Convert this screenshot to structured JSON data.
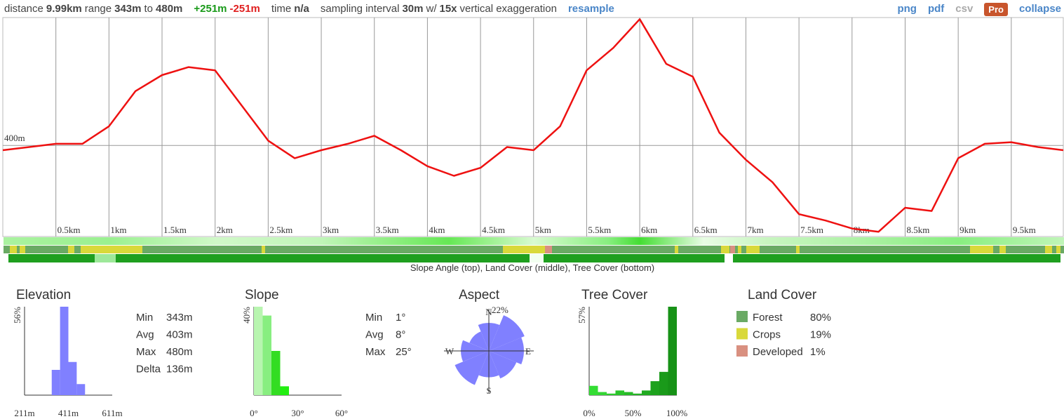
{
  "header": {
    "groups": [
      [
        {
          "text": "distance"
        },
        {
          "text": "9.99km",
          "bold": true
        },
        {
          "text": "range"
        },
        {
          "text": "343m",
          "bold": true
        },
        {
          "text": "to"
        },
        {
          "text": "480m",
          "bold": true
        }
      ],
      [
        {
          "text": "+251m",
          "bold": true,
          "color": "#1a9a1a"
        },
        {
          "text": "-251m",
          "bold": true,
          "color": "#e02020"
        }
      ],
      [
        {
          "text": "time"
        },
        {
          "text": "n/a",
          "bold": true
        }
      ],
      [
        {
          "text": "sampling interval"
        },
        {
          "text": "30m",
          "bold": true
        },
        {
          "text": "w/"
        },
        {
          "text": "15x",
          "bold": true
        },
        {
          "text": "vertical exaggeration"
        }
      ],
      [
        {
          "text": "resample",
          "bold": true,
          "color": "#4a86c8",
          "link": true
        }
      ]
    ],
    "links": [
      {
        "text": "png",
        "color": "#4a86c8"
      },
      {
        "text": "pdf",
        "color": "#4a86c8"
      },
      {
        "text": "csv",
        "color": "#aaaaaa"
      },
      {
        "text": "Pro",
        "color": "#ffffff",
        "background": "#c8552c"
      },
      {
        "text": "collapse",
        "color": "#4a86c8"
      }
    ]
  },
  "strips": {
    "caption": "Slope Angle (top), Land Cover (middle), Tree Cover (bottom)"
  },
  "chart_data": [
    {
      "type": "line",
      "x": [
        0,
        0.25,
        0.5,
        0.75,
        1,
        1.25,
        1.5,
        1.75,
        2,
        2.25,
        2.5,
        2.75,
        3,
        3.25,
        3.5,
        3.75,
        4,
        4.25,
        4.5,
        4.75,
        5,
        5.25,
        5.5,
        5.75,
        6,
        6.25,
        6.5,
        6.75,
        7,
        7.25,
        7.5,
        7.75,
        8,
        8.25,
        8.5,
        8.75,
        9,
        9.25,
        9.5,
        9.75,
        9.99
      ],
      "values": [
        397,
        399,
        401,
        401,
        412,
        434,
        444,
        449,
        447,
        425,
        403,
        392,
        397,
        401,
        406,
        397,
        387,
        381,
        386,
        399,
        397,
        412,
        447,
        461,
        479,
        451,
        443,
        408,
        391,
        377,
        357,
        353,
        348,
        346,
        361,
        359,
        392,
        401,
        402,
        399,
        397
      ],
      "color": "#ee1111",
      "xlim": [
        0,
        9.99
      ],
      "ylim": [
        343,
        480
      ],
      "xticks": [
        {
          "value": 0.5,
          "label": "0.5km"
        },
        {
          "value": 1,
          "label": "1km"
        },
        {
          "value": 1.5,
          "label": "1.5km"
        },
        {
          "value": 2,
          "label": "2km"
        },
        {
          "value": 2.5,
          "label": "2.5km"
        },
        {
          "value": 3,
          "label": "3km"
        },
        {
          "value": 3.5,
          "label": "3.5km"
        },
        {
          "value": 4,
          "label": "4km"
        },
        {
          "value": 4.5,
          "label": "4.5km"
        },
        {
          "value": 5,
          "label": "5km"
        },
        {
          "value": 5.5,
          "label": "5.5km"
        },
        {
          "value": 6,
          "label": "6km"
        },
        {
          "value": 6.5,
          "label": "6.5km"
        },
        {
          "value": 7,
          "label": "7km"
        },
        {
          "value": 7.5,
          "label": "7.5km"
        },
        {
          "value": 8,
          "label": "8km"
        },
        {
          "value": 8.5,
          "label": "8.5km"
        },
        {
          "value": 9,
          "label": "9km"
        },
        {
          "value": 9.5,
          "label": "9.5km"
        }
      ],
      "yticks": [
        {
          "value": 400,
          "label": "400m"
        }
      ],
      "grid": true
    },
    {
      "type": "histogram",
      "title": "Elevation",
      "bins": [
        335,
        373,
        411,
        449,
        487
      ],
      "values": [
        16,
        56,
        21,
        7
      ],
      "colors": [
        "#8080ff",
        "#8080ff",
        "#8080ff",
        "#8080ff"
      ],
      "xlim": [
        211,
        611
      ],
      "xticks": [
        {
          "value": 211,
          "label": "211m"
        },
        {
          "value": 411,
          "label": "411m"
        },
        {
          "value": 611,
          "label": "611m"
        }
      ],
      "ylim": [
        0,
        56
      ],
      "yticks": [
        {
          "value": 56,
          "label": "56%"
        }
      ],
      "stats": [
        [
          "Min",
          "343m"
        ],
        [
          "Avg",
          "403m"
        ],
        [
          "Max",
          "480m"
        ],
        [
          "Delta",
          "136m"
        ]
      ]
    },
    {
      "type": "histogram",
      "title": "Slope",
      "bins": [
        0,
        6,
        12,
        18,
        24
      ],
      "values": [
        40,
        36,
        20,
        4
      ],
      "colors": [
        "#b8f5b0",
        "#88ee80",
        "#33dd22",
        "#22ee11"
      ],
      "xlim": [
        0,
        60
      ],
      "xticks": [
        {
          "value": 0,
          "label": "0°"
        },
        {
          "value": 30,
          "label": "30°"
        },
        {
          "value": 60,
          "label": "60°"
        }
      ],
      "ylim": [
        0,
        40
      ],
      "yticks": [
        {
          "value": 40,
          "label": "40%"
        }
      ],
      "stats": [
        [
          "Min",
          "1°"
        ],
        [
          "Avg",
          "8°"
        ],
        [
          "Max",
          "25°"
        ]
      ]
    },
    {
      "type": "rose",
      "title": "Aspect",
      "categories": [
        "N",
        null,
        "E",
        null,
        "S",
        null,
        "W",
        null
      ],
      "values": [
        16,
        22,
        20,
        17,
        15,
        21,
        16,
        12
      ],
      "color": "#8080ff",
      "rlim": [
        0,
        22
      ],
      "rticks": [
        {
          "value": 22,
          "label": "22%"
        }
      ]
    },
    {
      "type": "histogram",
      "title": "Tree Cover",
      "bins": [
        0,
        10,
        20,
        30,
        40,
        50,
        60,
        70,
        80,
        90,
        100
      ],
      "values": [
        6,
        2,
        1,
        3,
        2,
        1,
        3,
        9,
        15,
        57
      ],
      "colors": [
        "#33dd33",
        "#33d533",
        "#2ecc2e",
        "#2ac42a",
        "#27bb27",
        "#24b324",
        "#20aa20",
        "#1da21d",
        "#1a9a1a",
        "#179217"
      ],
      "xlim": [
        0,
        100
      ],
      "xticks": [
        {
          "value": 0,
          "label": "0%"
        },
        {
          "value": 50,
          "label": "50%"
        },
        {
          "value": 100,
          "label": "100%"
        }
      ],
      "ylim": [
        0,
        57
      ],
      "yticks": [
        {
          "value": 57,
          "label": "57%"
        }
      ]
    }
  ],
  "land_cover": {
    "title": "Land Cover",
    "items": [
      {
        "name": "Forest",
        "value": "80%",
        "color": "#6aaa64"
      },
      {
        "name": "Crops",
        "value": "19%",
        "color": "#d9d93a"
      },
      {
        "name": "Developed",
        "value": "1%",
        "color": "#d99080"
      }
    ]
  }
}
